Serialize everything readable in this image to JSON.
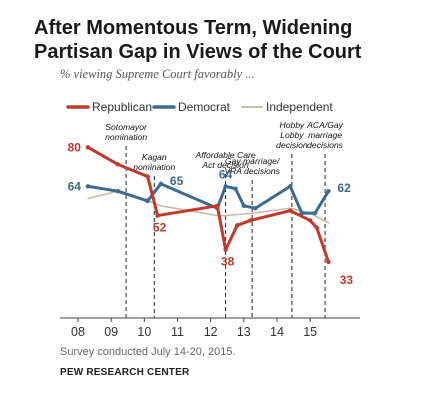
{
  "header": {
    "title_line1": "After Momentous Term, Widening",
    "title_line2": "Partisan Gap in Views of the Court",
    "subtitle": "% viewing Supreme Court favorably ..."
  },
  "footer": {
    "note": "Survey conducted July 14-20, 2015.",
    "source": "PEW RESEARCH CENTER"
  },
  "chart_data": {
    "type": "line",
    "title": "After Momentous Term, Widening Partisan Gap in Views of the Court",
    "subtitle": "% viewing Supreme Court favorably ...",
    "xlim": [
      2008,
      2015.9
    ],
    "ylim": [
      10,
      92
    ],
    "x_ticks": [
      2008,
      2009,
      2010,
      2011,
      2012,
      2013,
      2014,
      2015
    ],
    "x_tick_labels": [
      "08",
      "09",
      "10",
      "11",
      "12",
      "13",
      "14",
      "15"
    ],
    "legend_position": "top",
    "grid": false,
    "series": [
      {
        "name": "Republican",
        "color": "#c0392b",
        "x": [
          2008.3,
          2009.2,
          2010.1,
          2010.4,
          2012.2,
          2012.45,
          2012.8,
          2013.2,
          2014.4,
          2015.0,
          2015.2,
          2015.55
        ],
        "y": [
          80,
          73,
          68,
          52,
          56,
          38,
          48,
          50,
          54,
          50,
          47,
          33
        ],
        "data_labels": [
          {
            "x": 2008.3,
            "y": 80,
            "text": "80",
            "pos": "left"
          },
          {
            "x": 2010.4,
            "y": 52,
            "text": "52",
            "pos": "below"
          },
          {
            "x": 2012.45,
            "y": 38,
            "text": "38",
            "pos": "below"
          },
          {
            "x": 2015.55,
            "y": 33,
            "text": "33",
            "pos": "right-below"
          }
        ]
      },
      {
        "name": "Democrat",
        "color": "#3d6b8e",
        "x": [
          2008.3,
          2009.2,
          2010.1,
          2010.5,
          2012.2,
          2012.45,
          2012.75,
          2013.0,
          2013.35,
          2014.4,
          2014.75,
          2015.15,
          2015.55
        ],
        "y": [
          64,
          62,
          58,
          65,
          55,
          64,
          63,
          56,
          55,
          64,
          53,
          53,
          62
        ],
        "data_labels": [
          {
            "x": 2008.3,
            "y": 64,
            "text": "64",
            "pos": "left"
          },
          {
            "x": 2010.5,
            "y": 65,
            "text": "65",
            "pos": "right"
          },
          {
            "x": 2012.45,
            "y": 64,
            "text": "64",
            "pos": "above"
          },
          {
            "x": 2015.55,
            "y": 62,
            "text": "62",
            "pos": "right"
          }
        ]
      },
      {
        "name": "Independent",
        "color": "#c8bca8",
        "x": [
          2008.3,
          2009.2,
          2010.1,
          2010.5,
          2012.2,
          2012.45,
          2013.3,
          2014.4,
          2015.0,
          2015.55
        ],
        "y": [
          59,
          62,
          58,
          56,
          52,
          52,
          53,
          55,
          53,
          49
        ],
        "data_labels": []
      }
    ],
    "annotations": [
      {
        "x": 2009.45,
        "label": [
          "Sotomayor",
          "nomination"
        ]
      },
      {
        "x": 2010.3,
        "label": [
          "Kagan",
          "nomination"
        ]
      },
      {
        "x": 2012.45,
        "label": [
          "Affordable Care",
          "Act decision"
        ]
      },
      {
        "x": 2013.25,
        "label": [
          "Gay marriage/",
          "VRA decisions"
        ]
      },
      {
        "x": 2014.45,
        "label": [
          "Hobby",
          "Lobby",
          "decision"
        ]
      },
      {
        "x": 2015.45,
        "label": [
          "ACA/Gay",
          "marriage",
          "decisions"
        ]
      }
    ]
  }
}
